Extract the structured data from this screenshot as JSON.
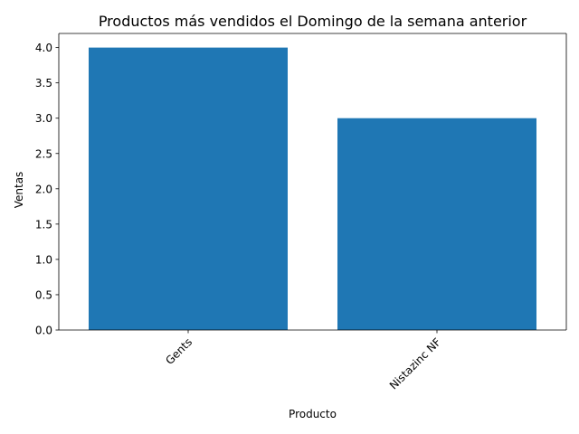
{
  "chart_data": {
    "type": "bar",
    "title": "Productos más vendidos el Domingo de la semana anterior",
    "xlabel": "Producto",
    "ylabel": "Ventas",
    "categories": [
      "Gents",
      "Nistazinc NF"
    ],
    "values": [
      4,
      3
    ],
    "ylim": [
      0,
      4.2
    ],
    "yticks": [
      "0.0",
      "0.5",
      "1.0",
      "1.5",
      "2.0",
      "2.5",
      "3.0",
      "3.5",
      "4.0"
    ],
    "xtick_rotation_deg": 45,
    "bar_color": "#1f77b4",
    "grid": false,
    "legend": "none"
  }
}
